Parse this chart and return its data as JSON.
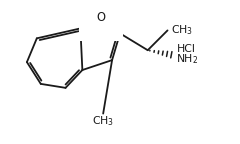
{
  "bg_color": "#ffffff",
  "line_color": "#1a1a1a",
  "line_width": 1.3,
  "font_size": 7.8,
  "fig_width": 2.4,
  "fig_height": 1.44,
  "dpi": 100
}
